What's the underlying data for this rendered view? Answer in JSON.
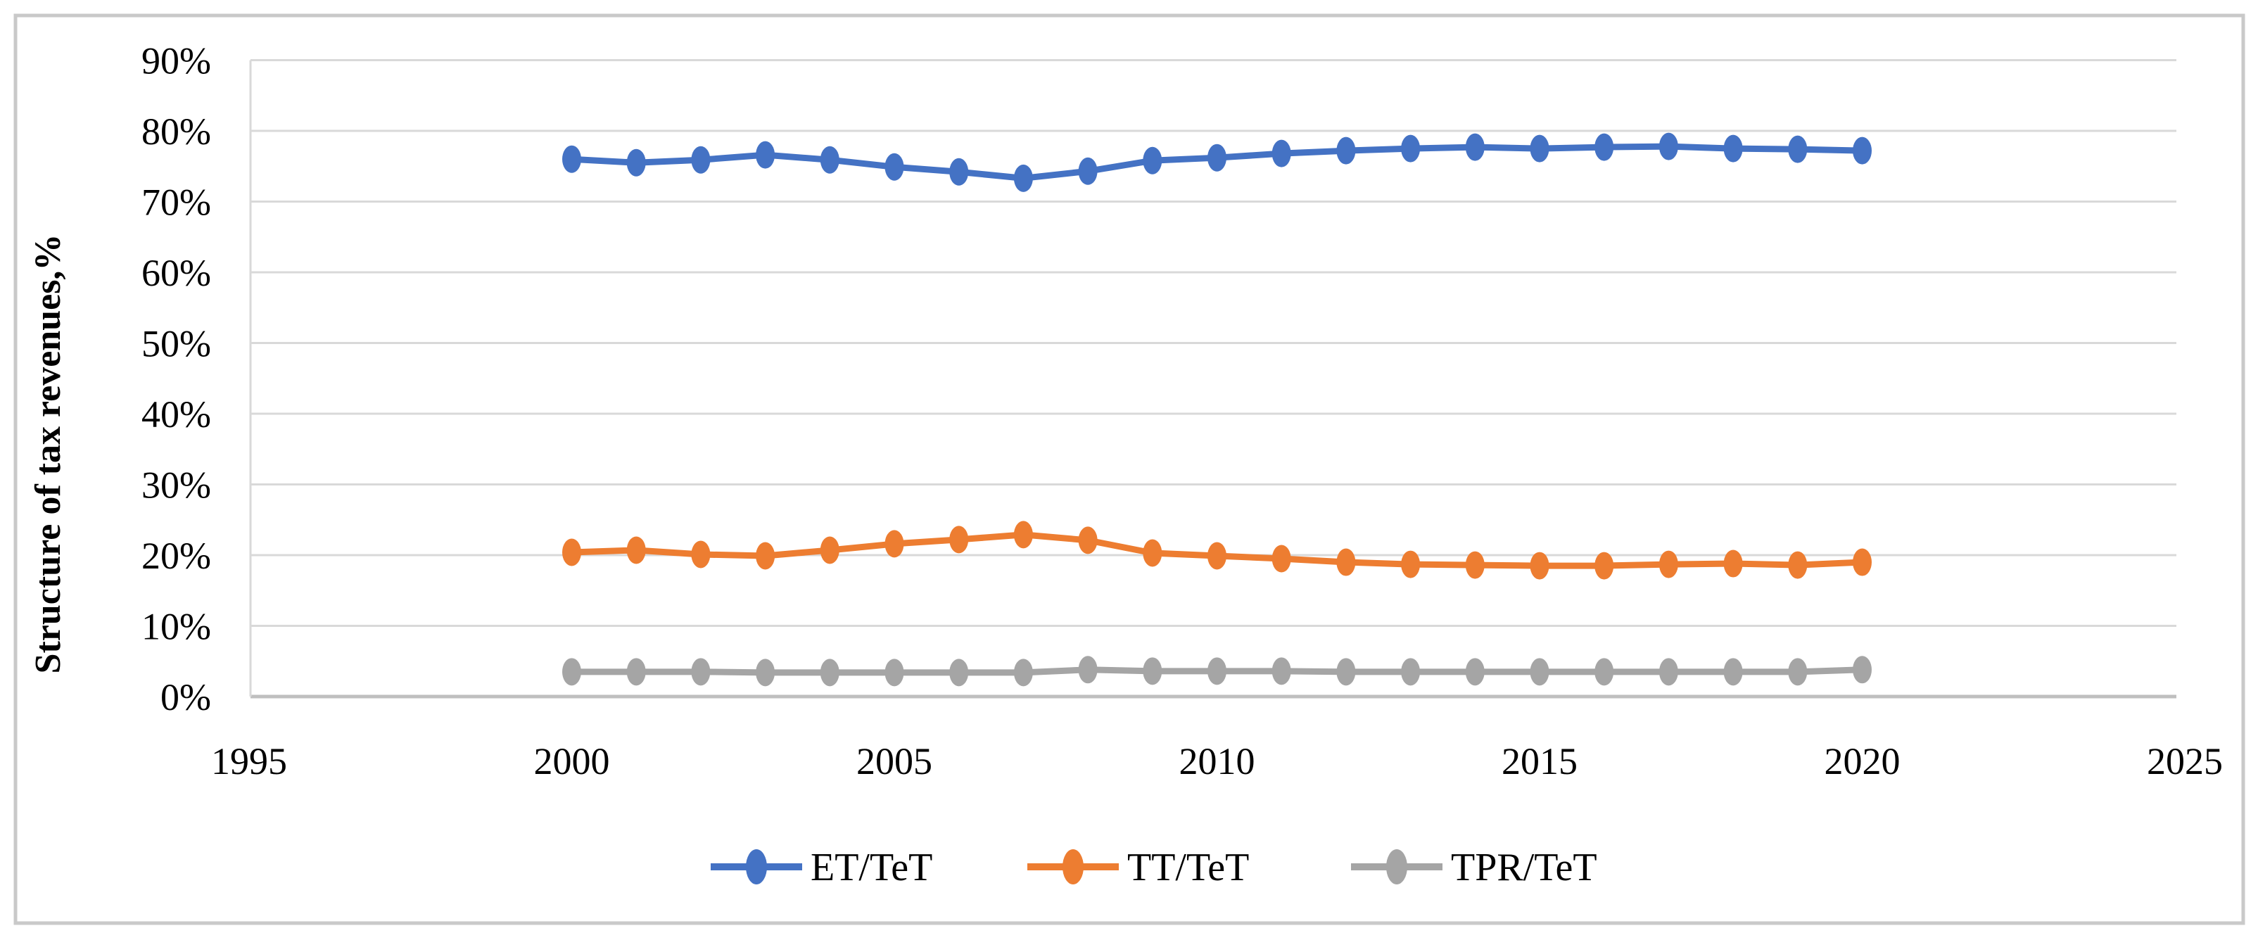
{
  "figure": {
    "background": "#ffffff",
    "border_color": "#c9c9c9",
    "gridline_color": "#d9d9d9",
    "axis_line_color": "#bfbfbf",
    "text_color": "#000000"
  },
  "chart_data": {
    "type": "line",
    "title": "",
    "xlabel": "",
    "ylabel": "Structure of tax revenues,%",
    "grid": "horizontal",
    "legend_position": "bottom",
    "x": [
      2000,
      2001,
      2002,
      2003,
      2004,
      2005,
      2006,
      2007,
      2008,
      2009,
      2010,
      2011,
      2012,
      2013,
      2014,
      2015,
      2016,
      2017,
      2018,
      2019,
      2020
    ],
    "x_axis": {
      "range": [
        1995,
        2025
      ],
      "tick_values": [
        1995,
        2000,
        2005,
        2010,
        2015,
        2020,
        2025
      ],
      "tick_labels": [
        "1995",
        "2000",
        "2005",
        "2010",
        "2015",
        "2020",
        "2025"
      ]
    },
    "y_axis": {
      "range": [
        0,
        90
      ],
      "unit": "percent",
      "tick_values": [
        90,
        80,
        70,
        60,
        50,
        40,
        30,
        20,
        10,
        0
      ],
      "tick_labels": [
        "90%",
        "80%",
        "70%",
        "60%",
        "50%",
        "40%",
        "30%",
        "20%",
        "10%",
        "0%"
      ]
    },
    "series": [
      {
        "name": "ET/TeT",
        "color": "#4472C4",
        "values": [
          76.0,
          75.5,
          75.9,
          76.6,
          75.9,
          74.9,
          74.2,
          73.3,
          74.3,
          75.8,
          76.2,
          76.8,
          77.2,
          77.5,
          77.7,
          77.5,
          77.7,
          77.8,
          77.5,
          77.4,
          77.2
        ]
      },
      {
        "name": "TT/TeT",
        "color": "#ED7D31",
        "values": [
          20.4,
          20.7,
          20.1,
          19.9,
          20.7,
          21.6,
          22.2,
          22.9,
          22.1,
          20.3,
          19.9,
          19.5,
          19.0,
          18.7,
          18.6,
          18.5,
          18.5,
          18.7,
          18.8,
          18.6,
          19.0
        ]
      },
      {
        "name": "TPR/TeT",
        "color": "#A5A5A5",
        "values": [
          3.5,
          3.5,
          3.5,
          3.4,
          3.4,
          3.4,
          3.4,
          3.4,
          3.8,
          3.6,
          3.6,
          3.6,
          3.5,
          3.5,
          3.5,
          3.5,
          3.5,
          3.5,
          3.5,
          3.5,
          3.8
        ]
      }
    ]
  }
}
